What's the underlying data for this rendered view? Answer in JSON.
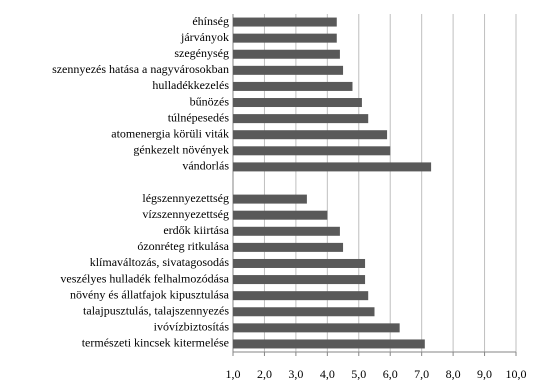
{
  "chart_data": {
    "type": "hbar",
    "color": "#595959",
    "grid": true,
    "categories": [
      "éhínség",
      "járványok",
      "szegénység",
      "szennyezés hatása a nagyvárosokban",
      "hulladékkezelés",
      "bűnözés",
      "túlnépesedés",
      "atomenergia körüli viták",
      "génkezelt növények",
      "vándorlás",
      null,
      "légszennyezettség",
      "vízszennyezettség",
      "erdők kiirtása",
      "ózonréteg ritkulása",
      "klímaváltozás, sivatagosodás",
      "veszélyes hulladék felhalmozódása",
      "növény és állatfajok kipusztulása",
      "talajpusztulás, talajszennyezés",
      "ivóvízbiztosítás",
      "természeti kincsek kitermelése"
    ],
    "values": [
      4.3,
      4.3,
      4.4,
      4.5,
      4.8,
      5.1,
      5.3,
      5.9,
      6.0,
      7.3,
      null,
      3.35,
      4.0,
      4.4,
      4.5,
      5.2,
      5.2,
      5.3,
      5.5,
      6.3,
      7.1
    ],
    "xlim": [
      1,
      10
    ],
    "xticks": [
      {
        "value": 1,
        "label": "1,0"
      },
      {
        "value": 2,
        "label": "2,0"
      },
      {
        "value": 3,
        "label": "3,0"
      },
      {
        "value": 4,
        "label": "4,0"
      },
      {
        "value": 5,
        "label": "5,0"
      },
      {
        "value": 6,
        "label": "6,0"
      },
      {
        "value": 7,
        "label": "7,0"
      },
      {
        "value": 8,
        "label": "8,0"
      },
      {
        "value": 9,
        "label": "9,0"
      },
      {
        "value": 10,
        "label": "10,0"
      }
    ]
  }
}
